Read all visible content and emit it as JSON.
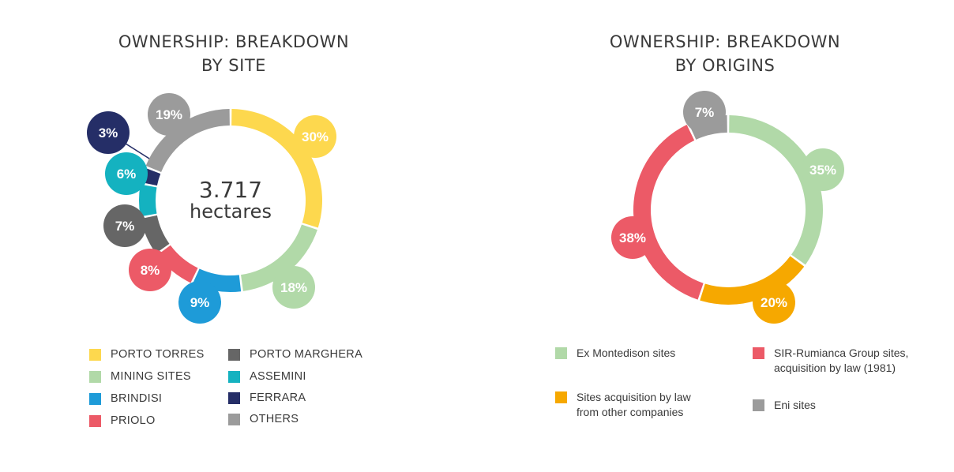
{
  "chart_data": [
    {
      "type": "pie",
      "variant": "donut",
      "title": "OWNERSHIP: BREAKDOWN\nBY SITE",
      "center_value": "3.717",
      "center_unit": "hectares",
      "categories": [
        "PORTO TORRES",
        "MINING SITES",
        "BRINDISI",
        "PRIOLO",
        "PORTO MARGHERA",
        "ASSEMINI",
        "FERRARA",
        "OTHERS"
      ],
      "values": [
        30,
        18,
        9,
        8,
        7,
        6,
        3,
        19
      ],
      "labels": [
        "30%",
        "18%",
        "9%",
        "8%",
        "7%",
        "6%",
        "3%",
        "19%"
      ],
      "colors": [
        "#fdd84e",
        "#b1d9a8",
        "#1e9bd8",
        "#ec5a67",
        "#666666",
        "#14b2c0",
        "#252e67",
        "#9b9b9b"
      ],
      "label_text_colors": [
        "#ffffff",
        "#ffffff",
        "#ffffff",
        "#ffffff",
        "#ffffff",
        "#ffffff",
        "#ffffff",
        "#ffffff"
      ]
    },
    {
      "type": "pie",
      "variant": "donut",
      "title": "OWNERSHIP: BREAKDOWN\nBY ORIGINS",
      "categories": [
        "Ex Montedison sites",
        "Sites acquisition by law\nfrom other companies",
        "SIR-Rumianca Group sites,\nacquisition by law (1981)",
        "Eni sites"
      ],
      "values": [
        35,
        20,
        38,
        7
      ],
      "labels": [
        "35%",
        "20%",
        "38%",
        "7%"
      ],
      "colors": [
        "#b1d9a8",
        "#f6a800",
        "#ec5a67",
        "#9b9b9b"
      ]
    }
  ]
}
